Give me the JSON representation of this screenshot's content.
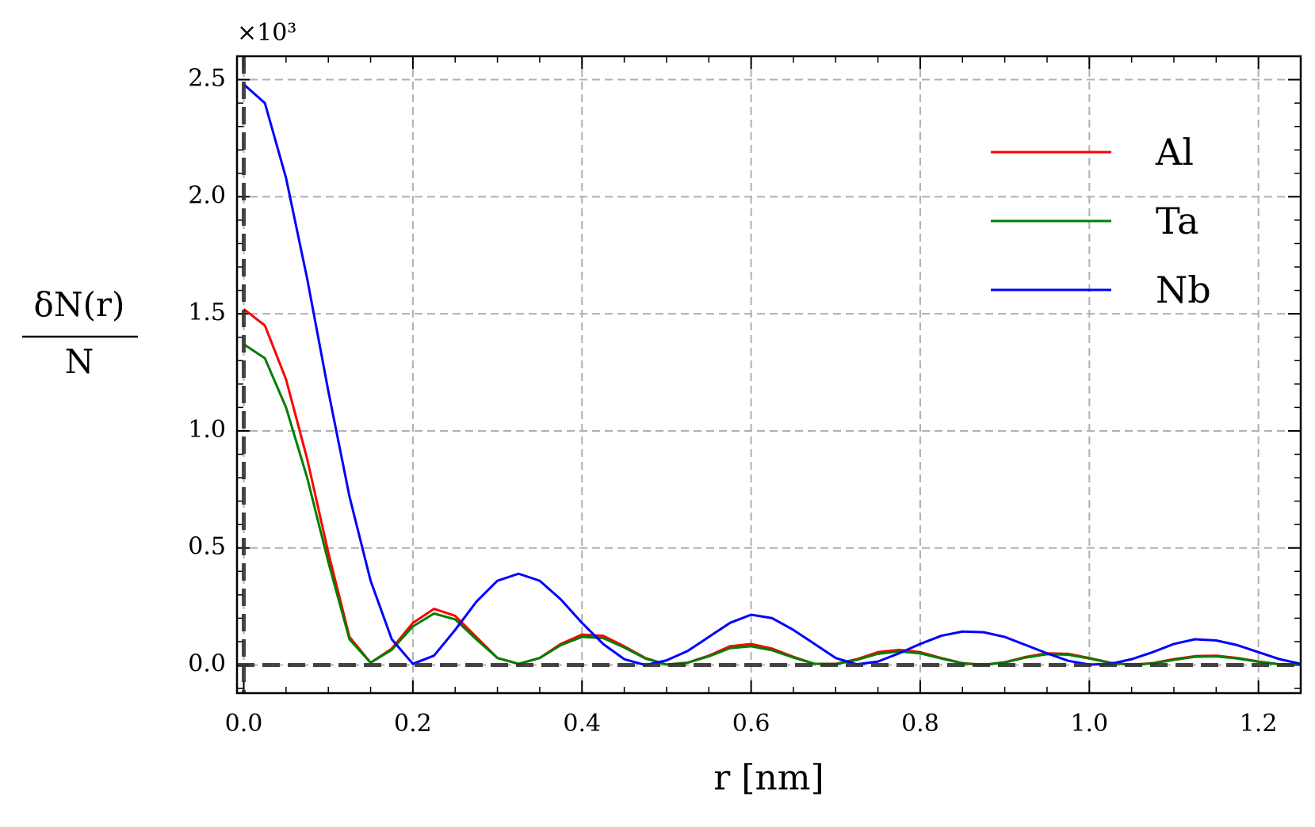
{
  "chart_data": {
    "type": "line",
    "ylabel": {
      "numerator": "δN(r)",
      "denominator": "N"
    },
    "xlabel": "r [nm]",
    "y_offset_text": "×10³",
    "x": [
      0,
      0.025,
      0.05,
      0.075,
      0.1,
      0.125,
      0.15,
      0.175,
      0.2,
      0.225,
      0.25,
      0.275,
      0.3,
      0.325,
      0.35,
      0.375,
      0.4,
      0.425,
      0.45,
      0.475,
      0.5,
      0.525,
      0.55,
      0.575,
      0.6,
      0.625,
      0.65,
      0.675,
      0.7,
      0.725,
      0.75,
      0.775,
      0.8,
      0.825,
      0.85,
      0.875,
      0.9,
      0.925,
      0.95,
      0.975,
      1.0,
      1.025,
      1.05,
      1.075,
      1.1,
      1.125,
      1.15,
      1.175,
      1.2,
      1.225,
      1.25
    ],
    "series": [
      {
        "name": "Al",
        "color": "#ff0000",
        "values": [
          1.52,
          1.45,
          1.22,
          0.88,
          0.48,
          0.12,
          0.01,
          0.07,
          0.18,
          0.24,
          0.21,
          0.12,
          0.03,
          0.005,
          0.03,
          0.09,
          0.13,
          0.125,
          0.08,
          0.03,
          0.002,
          0.01,
          0.04,
          0.08,
          0.09,
          0.07,
          0.035,
          0.005,
          0.005,
          0.025,
          0.055,
          0.065,
          0.055,
          0.03,
          0.008,
          0.001,
          0.012,
          0.035,
          0.05,
          0.048,
          0.03,
          0.01,
          0.001,
          0.008,
          0.025,
          0.038,
          0.04,
          0.03,
          0.015,
          0.003,
          0.001
        ]
      },
      {
        "name": "Ta",
        "color": "#007f00",
        "values": [
          1.37,
          1.31,
          1.1,
          0.8,
          0.44,
          0.11,
          0.01,
          0.065,
          0.165,
          0.22,
          0.195,
          0.11,
          0.03,
          0.005,
          0.03,
          0.085,
          0.12,
          0.115,
          0.075,
          0.028,
          0.002,
          0.01,
          0.037,
          0.072,
          0.08,
          0.063,
          0.032,
          0.005,
          0.004,
          0.022,
          0.048,
          0.058,
          0.05,
          0.028,
          0.007,
          0.001,
          0.011,
          0.032,
          0.046,
          0.044,
          0.028,
          0.009,
          0.001,
          0.007,
          0.022,
          0.035,
          0.037,
          0.028,
          0.014,
          0.003,
          0.001
        ]
      },
      {
        "name": "Nb",
        "color": "#0000ff",
        "values": [
          2.48,
          2.4,
          2.08,
          1.65,
          1.17,
          0.72,
          0.36,
          0.11,
          0.005,
          0.04,
          0.15,
          0.27,
          0.36,
          0.39,
          0.36,
          0.28,
          0.18,
          0.09,
          0.025,
          0.0,
          0.02,
          0.06,
          0.12,
          0.18,
          0.215,
          0.2,
          0.15,
          0.09,
          0.03,
          0.003,
          0.015,
          0.05,
          0.09,
          0.125,
          0.143,
          0.14,
          0.12,
          0.085,
          0.05,
          0.018,
          0.002,
          0.005,
          0.025,
          0.055,
          0.09,
          0.11,
          0.105,
          0.085,
          0.055,
          0.025,
          0.005
        ]
      }
    ],
    "xlim": [
      -0.008,
      1.25
    ],
    "ylim": [
      -0.12,
      2.6
    ],
    "xticks": [
      {
        "value": 0,
        "label": "0.0"
      },
      0.2,
      0.4,
      0.6,
      0.8,
      {
        "value": 1,
        "label": "1.0"
      },
      1.2
    ],
    "yticks": [
      {
        "value": 0,
        "label": "0.0"
      },
      0.5,
      {
        "value": 1,
        "label": "1.0"
      },
      1.5,
      {
        "value": 2,
        "label": "2.0"
      },
      2.5
    ],
    "x_minor_ticks": [
      0.05,
      0.1,
      0.15,
      0.25,
      0.3,
      0.35,
      0.45,
      0.5,
      0.55,
      0.65,
      0.7,
      0.75,
      0.85,
      0.9,
      0.95,
      1.05,
      1.1,
      1.15
    ],
    "y_minor_ticks": [
      -0.1,
      0.1,
      0.2,
      0.3,
      0.4,
      0.6,
      0.7,
      0.8,
      0.9,
      1.1,
      1.2,
      1.3,
      1.4,
      1.6,
      1.7,
      1.8,
      1.9,
      2.1,
      2.2,
      2.3,
      2.4
    ],
    "axhline": 0,
    "axvline": 0,
    "grid": true,
    "legend": "upper right"
  }
}
